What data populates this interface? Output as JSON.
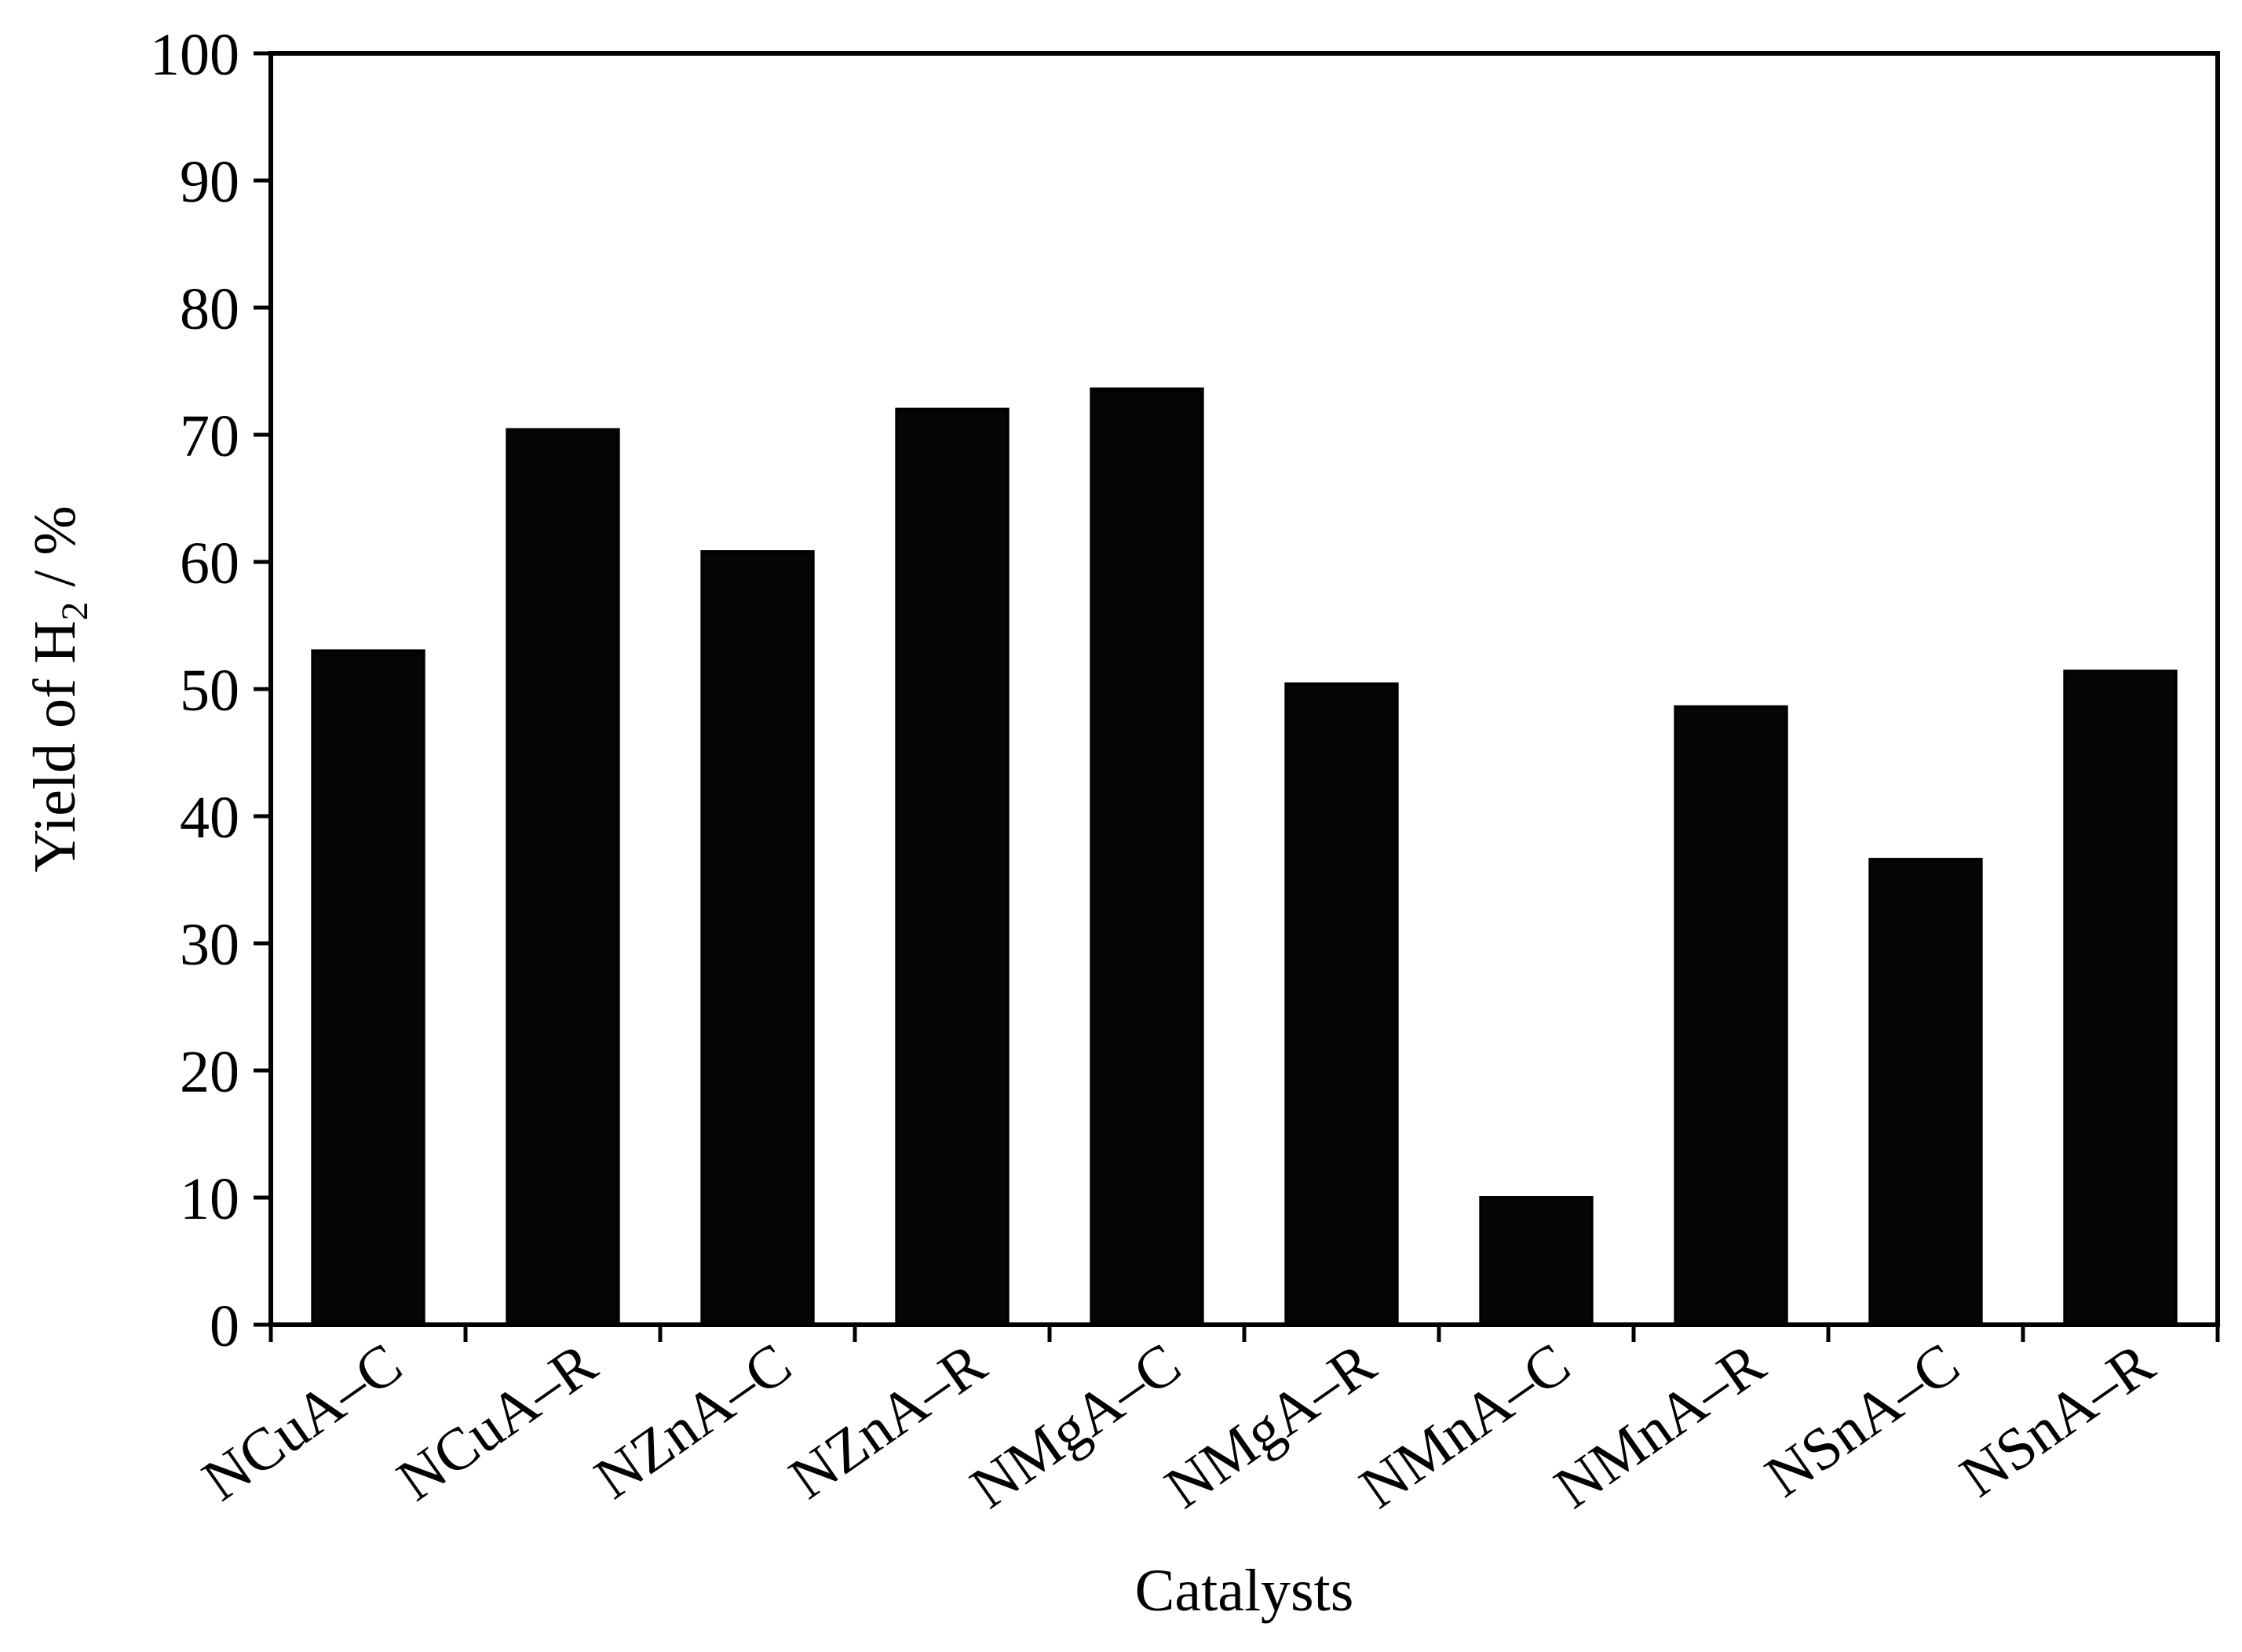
{
  "chart_data": {
    "type": "bar",
    "title": "",
    "xlabel": "Catalysts",
    "ylabel": {
      "main": "Yield of H",
      "subscript": "2",
      "suffix": " / %"
    },
    "categories": [
      "NCuA–C",
      "NCuA–R",
      "NZnA–C",
      "NZnA–R",
      "NMgA–C",
      "NMgA–R",
      "NMnA–C",
      "NMnA–R",
      "NSnA–C",
      "NSnA–R"
    ],
    "values": [
      53.0,
      70.4,
      60.8,
      72.0,
      73.6,
      50.4,
      10.0,
      48.6,
      36.6,
      51.4
    ],
    "ylim": [
      0,
      100
    ],
    "yticks": [
      0,
      10,
      20,
      30,
      40,
      50,
      60,
      70,
      80,
      90,
      100
    ],
    "grid": false,
    "bar_color": "#050505"
  }
}
